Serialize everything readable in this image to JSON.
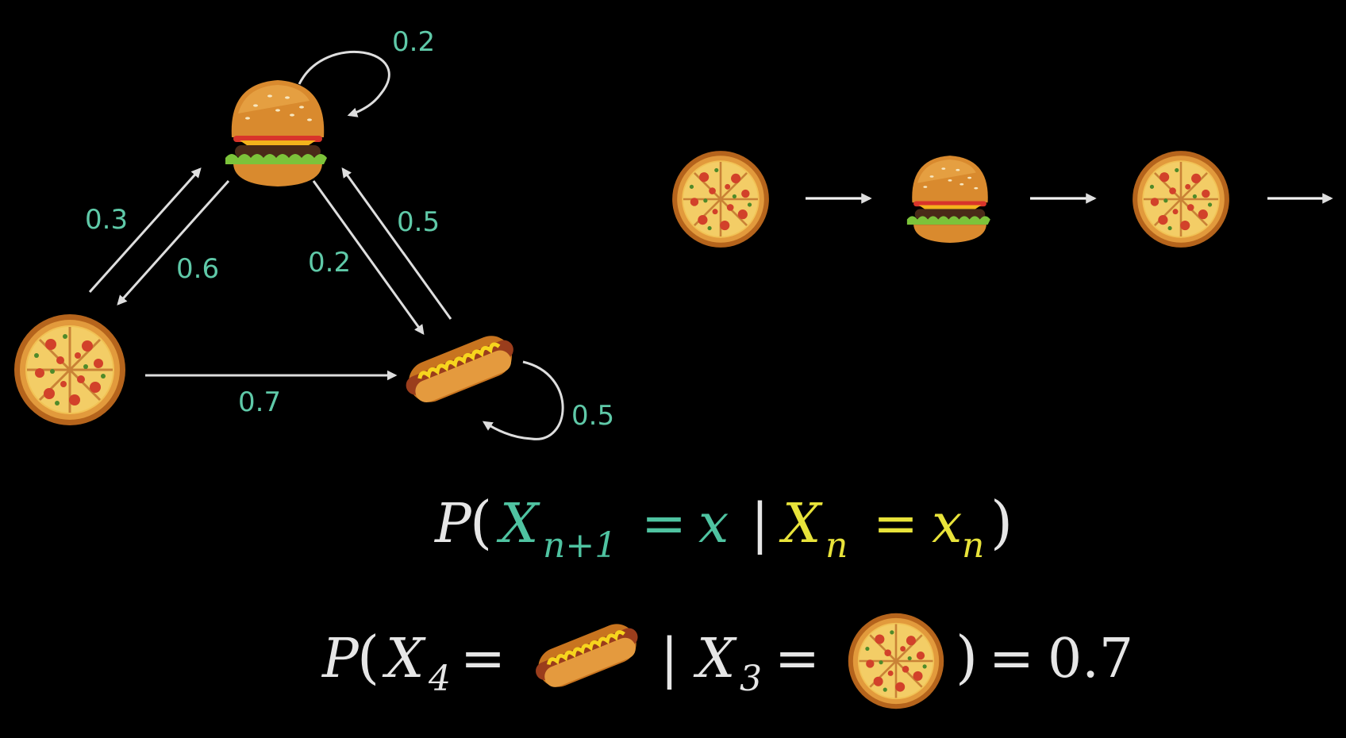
{
  "colors": {
    "background": "#000000",
    "arrow": "#dedede",
    "probability_label": "#5fc9a8",
    "teal": "#4fc3a1",
    "yellow": "#e8e33a",
    "math_text": "#e6e6e6"
  },
  "states": [
    {
      "id": "burger",
      "icon": "burger-icon"
    },
    {
      "id": "pizza",
      "icon": "pizza-icon"
    },
    {
      "id": "hotdog",
      "icon": "hotdog-icon"
    }
  ],
  "transitions": [
    {
      "from": "burger",
      "to": "burger",
      "label": "0.2"
    },
    {
      "from": "pizza",
      "to": "burger",
      "label": "0.3"
    },
    {
      "from": "burger",
      "to": "pizza",
      "label": "0.6"
    },
    {
      "from": "burger",
      "to": "hotdog",
      "label": "0.2"
    },
    {
      "from": "hotdog",
      "to": "burger",
      "label": "0.5"
    },
    {
      "from": "pizza",
      "to": "hotdog",
      "label": "0.7"
    },
    {
      "from": "hotdog",
      "to": "hotdog",
      "label": "0.5"
    }
  ],
  "sequence": [
    "pizza-icon",
    "burger-icon",
    "pizza-icon"
  ],
  "formula_general": {
    "p": "P",
    "open": "(",
    "x1": "X",
    "x1_sub": "n+1",
    "eq1": "=",
    "val1": "x",
    "bar": "|",
    "x2": "X",
    "x2_sub": "n",
    "eq2": "=",
    "val2": "x",
    "val2_sub": "n",
    "close": ")"
  },
  "formula_example": {
    "p": "P",
    "open": "(",
    "x1": "X",
    "x1_sub": "4",
    "eq1": "=",
    "bar": "|",
    "x2": "X",
    "x2_sub": "3",
    "eq2": "=",
    "close": ")",
    "eq3": "=",
    "result": "0.7"
  }
}
